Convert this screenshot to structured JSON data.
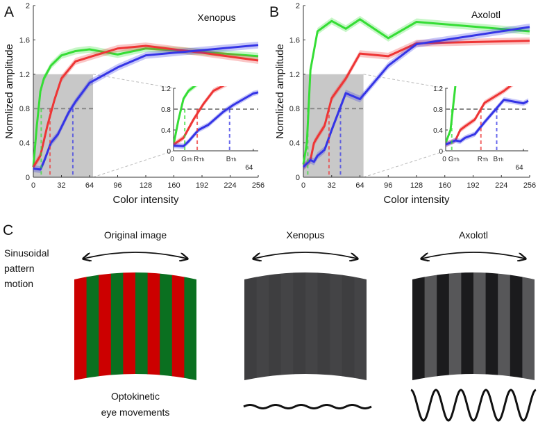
{
  "colors": {
    "green": "#35dd35",
    "red": "#ee3535",
    "blue": "#3535e6",
    "shade": "#c8c8c8",
    "dash": "#888888"
  },
  "chart_data": [
    {
      "type": "line",
      "panel": "A",
      "title": "Xenopus",
      "xlabel": "Color intensity",
      "ylabel": "Normlized amplitude",
      "xlim": [
        0,
        256
      ],
      "ylim": [
        0,
        2
      ],
      "xticks": [
        "0",
        "32",
        "64",
        "96",
        "128",
        "160",
        "192",
        "224",
        "256"
      ],
      "yticks": [
        "0",
        "0.4",
        "0.8",
        "1.2",
        "1.6",
        "2"
      ],
      "highlight_region": {
        "x": [
          0,
          68
        ],
        "y": [
          0,
          1.2
        ]
      },
      "threshold_level": 0.8,
      "series": [
        {
          "name": "green",
          "x": [
            0,
            4,
            8,
            12,
            20,
            32,
            48,
            64,
            80,
            96,
            128,
            192,
            256
          ],
          "y": [
            0.12,
            0.6,
            1.0,
            1.15,
            1.3,
            1.42,
            1.47,
            1.49,
            1.46,
            1.43,
            1.5,
            1.46,
            1.41
          ],
          "threshold": 9
        },
        {
          "name": "red",
          "x": [
            0,
            8,
            16,
            24,
            32,
            48,
            64,
            96,
            128,
            192,
            256
          ],
          "y": [
            0.12,
            0.25,
            0.6,
            0.9,
            1.15,
            1.35,
            1.4,
            1.5,
            1.53,
            1.45,
            1.36
          ],
          "threshold": 19
        },
        {
          "name": "blue",
          "x": [
            0,
            8,
            12,
            20,
            28,
            40,
            48,
            64,
            96,
            128,
            192,
            256
          ],
          "y": [
            0.1,
            0.09,
            0.18,
            0.4,
            0.5,
            0.75,
            0.88,
            1.1,
            1.28,
            1.42,
            1.48,
            1.54
          ],
          "threshold": 45
        }
      ],
      "inset": {
        "xlim": [
          0,
          68
        ],
        "ylim": [
          0,
          1.2
        ],
        "yticks": [
          "0",
          "0.4",
          "0.8",
          "1.2"
        ],
        "x_zero_label": "0",
        "x_end_label": "64",
        "threshold_labels": [
          {
            "label": "G",
            "sub": "Th"
          },
          {
            "label": "R",
            "sub": "Th"
          },
          {
            "label": "B",
            "sub": "Th"
          }
        ]
      }
    },
    {
      "type": "line",
      "panel": "B",
      "title": "Axolotl",
      "xlabel": "Color intensity",
      "ylabel": "Normlized amplitude",
      "xlim": [
        0,
        256
      ],
      "ylim": [
        0,
        2
      ],
      "xticks": [
        "0",
        "32",
        "64",
        "96",
        "128",
        "160",
        "192",
        "224",
        "256"
      ],
      "yticks": [
        "0",
        "0.4",
        "0.8",
        "1.2",
        "1.6",
        "2"
      ],
      "highlight_region": {
        "x": [
          0,
          68
        ],
        "y": [
          0,
          1.2
        ]
      },
      "threshold_level": 0.8,
      "series": [
        {
          "name": "green",
          "x": [
            0,
            4,
            8,
            16,
            32,
            48,
            64,
            96,
            128,
            256
          ],
          "y": [
            0.15,
            0.4,
            1.25,
            1.7,
            1.82,
            1.73,
            1.84,
            1.62,
            1.81,
            1.7
          ],
          "threshold": 5
        },
        {
          "name": "red",
          "x": [
            0,
            8,
            12,
            16,
            24,
            32,
            48,
            64,
            96,
            128,
            256
          ],
          "y": [
            0.12,
            0.2,
            0.4,
            0.47,
            0.6,
            0.92,
            1.15,
            1.44,
            1.41,
            1.56,
            1.59
          ],
          "threshold": 29
        },
        {
          "name": "blue",
          "x": [
            0,
            8,
            12,
            16,
            24,
            32,
            48,
            64,
            96,
            128,
            256
          ],
          "y": [
            0.12,
            0.2,
            0.18,
            0.25,
            0.32,
            0.55,
            0.98,
            0.91,
            1.3,
            1.55,
            1.75
          ],
          "threshold": 42
        }
      ],
      "inset": {
        "xlim": [
          0,
          68
        ],
        "ylim": [
          0,
          1.2
        ],
        "yticks": [
          "0",
          "0.4",
          "0.8",
          "1.2"
        ],
        "x_zero_label": "0",
        "x_end_label": "64",
        "threshold_labels": [
          {
            "label": "G",
            "sub": "Th"
          },
          {
            "label": "R",
            "sub": "Th"
          },
          {
            "label": "B",
            "sub": "Th"
          }
        ]
      }
    }
  ],
  "panel_c": {
    "letter": "C",
    "row_label": [
      "Sinusoidal",
      "pattern",
      "motion"
    ],
    "bottom_label": [
      "Optokinetic",
      "eye movements"
    ],
    "columns": [
      {
        "title": "Original image",
        "stripe_colors": [
          "#cc0000",
          "#0a7020"
        ]
      },
      {
        "title": "Xenopus",
        "stripe_colors": [
          "#3e3e40",
          "#444446"
        ],
        "response_amplitude": 0.05
      },
      {
        "title": "Axolotl",
        "stripe_colors": [
          "#1b1b1d",
          "#575759"
        ],
        "response_amplitude": 1.0
      }
    ]
  }
}
